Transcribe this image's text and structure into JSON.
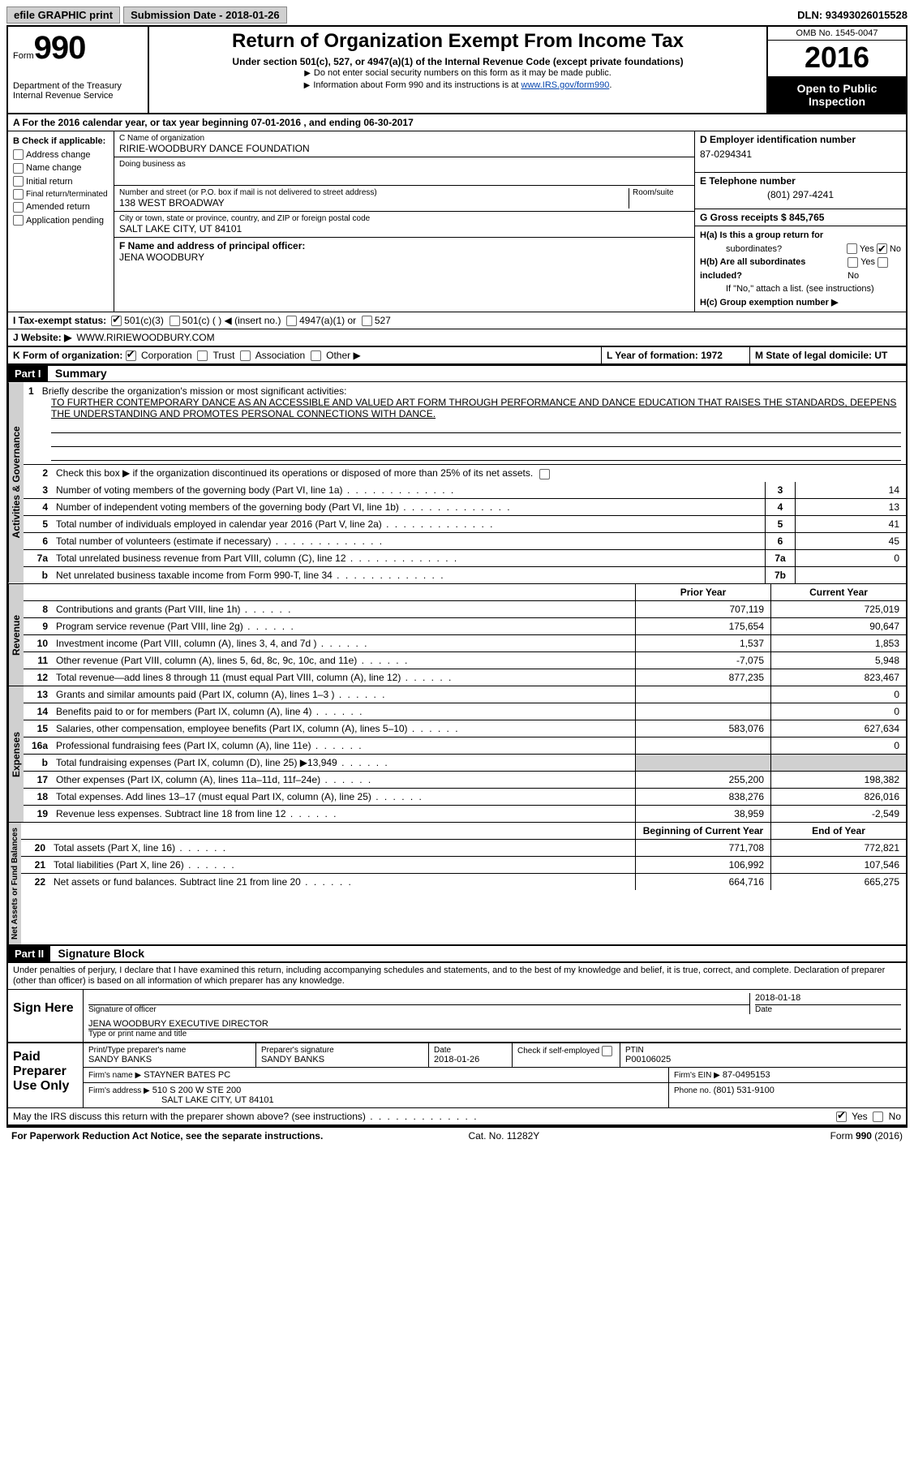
{
  "topbar": {
    "efile_btn": "efile GRAPHIC print",
    "submission_label": "Submission Date - 2018-01-26",
    "dln_label": "DLN: 93493026015528"
  },
  "header": {
    "form_word": "Form",
    "form_num": "990",
    "dept1": "Department of the Treasury",
    "dept2": "Internal Revenue Service",
    "title": "Return of Organization Exempt From Income Tax",
    "sub1": "Under section 501(c), 527, or 4947(a)(1) of the Internal Revenue Code (except private foundations)",
    "sub2": "Do not enter social security numbers on this form as it may be made public.",
    "sub3a": "Information about Form 990 and its instructions is at ",
    "sub3link": "www.IRS.gov/form990",
    "omb": "OMB No. 1545-0047",
    "year": "2016",
    "open1": "Open to Public",
    "open2": "Inspection"
  },
  "rowA": "A  For the 2016 calendar year, or tax year beginning 07-01-2016   , and ending 06-30-2017",
  "B": {
    "title": "B Check if applicable:",
    "opts": [
      "Address change",
      "Name change",
      "Initial return",
      "Final return/terminated",
      "Amended return",
      "Application pending"
    ]
  },
  "C": {
    "name_label": "C Name of organization",
    "name": "RIRIE-WOODBURY DANCE FOUNDATION",
    "dba_label": "Doing business as",
    "street_label": "Number and street (or P.O. box if mail is not delivered to street address)",
    "room_label": "Room/suite",
    "street": "138 WEST BROADWAY",
    "city_label": "City or town, state or province, country, and ZIP or foreign postal code",
    "city": "SALT LAKE CITY, UT  84101",
    "F_label": "F Name and address of principal officer:",
    "F_name": "JENA WOODBURY"
  },
  "D": {
    "ein_label": "D Employer identification number",
    "ein": "87-0294341",
    "phone_label": "E Telephone number",
    "phone": "(801) 297-4241",
    "gross_label": "G Gross receipts $ 845,765"
  },
  "H": {
    "a": "H(a)  Is this a group return for",
    "a2": "subordinates?",
    "b": "H(b)  Are all subordinates included?",
    "bnote": "If \"No,\" attach a list. (see instructions)",
    "c": "H(c)  Group exemption number ▶",
    "yes": "Yes",
    "no": "No"
  },
  "I": {
    "label": "I  Tax-exempt status:",
    "o1": "501(c)(3)",
    "o2": "501(c) (   ) ◀ (insert no.)",
    "o3": "4947(a)(1) or",
    "o4": "527"
  },
  "J": {
    "label": "J  Website: ▶",
    "val": "WWW.RIRIEWOODBURY.COM"
  },
  "K": {
    "label": "K Form of organization:",
    "corp": "Corporation",
    "trust": "Trust",
    "assoc": "Association",
    "other": "Other ▶"
  },
  "L": {
    "label": "L Year of formation: 1972"
  },
  "M": {
    "label": "M State of legal domicile: UT"
  },
  "partI": {
    "hdr": "Part I",
    "title": "Summary"
  },
  "summary": {
    "line1_label": "Briefly describe the organization's mission or most significant activities:",
    "line1_num": "1",
    "mission": "TO FURTHER CONTEMPORARY DANCE AS AN ACCESSIBLE AND VALUED ART FORM THROUGH PERFORMANCE AND DANCE EDUCATION THAT RAISES THE STANDARDS, DEEPENS THE UNDERSTANDING AND PROMOTES PERSONAL CONNECTIONS WITH DANCE.",
    "line2": "Check this box ▶      if the organization discontinued its operations or disposed of more than 25% of its net assets.",
    "rows": [
      {
        "n": "3",
        "t": "Number of voting members of the governing body (Part VI, line 1a)",
        "k": "3",
        "v": "14"
      },
      {
        "n": "4",
        "t": "Number of independent voting members of the governing body (Part VI, line 1b)",
        "k": "4",
        "v": "13"
      },
      {
        "n": "5",
        "t": "Total number of individuals employed in calendar year 2016 (Part V, line 2a)",
        "k": "5",
        "v": "41"
      },
      {
        "n": "6",
        "t": "Total number of volunteers (estimate if necessary)",
        "k": "6",
        "v": "45"
      },
      {
        "n": "7a",
        "t": "Total unrelated business revenue from Part VIII, column (C), line 12",
        "k": "7a",
        "v": "0"
      },
      {
        "n": "b",
        "t": "Net unrelated business taxable income from Form 990-T, line 34",
        "k": "7b",
        "v": ""
      }
    ]
  },
  "fin": {
    "hdr_prior": "Prior Year",
    "hdr_curr": "Current Year",
    "hdr_begin": "Beginning of Current Year",
    "hdr_end": "End of Year",
    "revenue": [
      {
        "n": "8",
        "t": "Contributions and grants (Part VIII, line 1h)",
        "p": "707,119",
        "c": "725,019"
      },
      {
        "n": "9",
        "t": "Program service revenue (Part VIII, line 2g)",
        "p": "175,654",
        "c": "90,647"
      },
      {
        "n": "10",
        "t": "Investment income (Part VIII, column (A), lines 3, 4, and 7d )",
        "p": "1,537",
        "c": "1,853"
      },
      {
        "n": "11",
        "t": "Other revenue (Part VIII, column (A), lines 5, 6d, 8c, 9c, 10c, and 11e)",
        "p": "-7,075",
        "c": "5,948"
      },
      {
        "n": "12",
        "t": "Total revenue—add lines 8 through 11 (must equal Part VIII, column (A), line 12)",
        "p": "877,235",
        "c": "823,467"
      }
    ],
    "expenses": [
      {
        "n": "13",
        "t": "Grants and similar amounts paid (Part IX, column (A), lines 1–3 )",
        "p": "",
        "c": "0"
      },
      {
        "n": "14",
        "t": "Benefits paid to or for members (Part IX, column (A), line 4)",
        "p": "",
        "c": "0"
      },
      {
        "n": "15",
        "t": "Salaries, other compensation, employee benefits (Part IX, column (A), lines 5–10)",
        "p": "583,076",
        "c": "627,634"
      },
      {
        "n": "16a",
        "t": "Professional fundraising fees (Part IX, column (A), line 11e)",
        "p": "",
        "c": "0"
      },
      {
        "n": "b",
        "t": "Total fundraising expenses (Part IX, column (D), line 25) ▶13,949",
        "p": "SHADED",
        "c": "SHADED"
      },
      {
        "n": "17",
        "t": "Other expenses (Part IX, column (A), lines 11a–11d, 11f–24e)",
        "p": "255,200",
        "c": "198,382"
      },
      {
        "n": "18",
        "t": "Total expenses. Add lines 13–17 (must equal Part IX, column (A), line 25)",
        "p": "838,276",
        "c": "826,016"
      },
      {
        "n": "19",
        "t": "Revenue less expenses. Subtract line 18 from line 12",
        "p": "38,959",
        "c": "-2,549"
      }
    ],
    "net": [
      {
        "n": "20",
        "t": "Total assets (Part X, line 16)",
        "p": "771,708",
        "c": "772,821"
      },
      {
        "n": "21",
        "t": "Total liabilities (Part X, line 26)",
        "p": "106,992",
        "c": "107,546"
      },
      {
        "n": "22",
        "t": "Net assets or fund balances. Subtract line 21 from line 20",
        "p": "664,716",
        "c": "665,275"
      }
    ]
  },
  "tabs": {
    "ag": "Activities & Governance",
    "rev": "Revenue",
    "exp": "Expenses",
    "net": "Net Assets or Fund Balances"
  },
  "partII": {
    "hdr": "Part II",
    "title": "Signature Block"
  },
  "penalties": "Under penalties of perjury, I declare that I have examined this return, including accompanying schedules and statements, and to the best of my knowledge and belief, it is true, correct, and complete. Declaration of preparer (other than officer) is based on all information of which preparer has any knowledge.",
  "sign": {
    "left": "Sign Here",
    "sig_label": "Signature of officer",
    "date_label": "Date",
    "date_val": "2018-01-18",
    "name": "JENA WOODBURY EXECUTIVE DIRECTOR",
    "name_label": "Type or print name and title"
  },
  "paid": {
    "left1": "Paid",
    "left2": "Preparer",
    "left3": "Use Only",
    "pname_label": "Print/Type preparer's name",
    "pname": "SANDY BANKS",
    "psig_label": "Preparer's signature",
    "psig": "SANDY BANKS",
    "pdate_label": "Date",
    "pdate": "2018-01-26",
    "check_label": "Check        if self-employed",
    "ptin_label": "PTIN",
    "ptin": "P00106025",
    "firm_label": "Firm's name    ▶",
    "firm": "STAYNER BATES PC",
    "firm_ein_label": "Firm's EIN ▶",
    "firm_ein": "87-0495153",
    "firm_addr_label": "Firm's address ▶",
    "firm_addr1": "510 S 200 W STE 200",
    "firm_addr2": "SALT LAKE CITY, UT  84101",
    "firm_phone_label": "Phone no.",
    "firm_phone": "(801) 531-9100"
  },
  "discuss": {
    "q": "May the IRS discuss this return with the preparer shown above? (see instructions)",
    "yes": "Yes",
    "no": "No"
  },
  "footer": {
    "left": "For Paperwork Reduction Act Notice, see the separate instructions.",
    "mid": "Cat. No. 11282Y",
    "right": "Form 990 (2016)"
  }
}
